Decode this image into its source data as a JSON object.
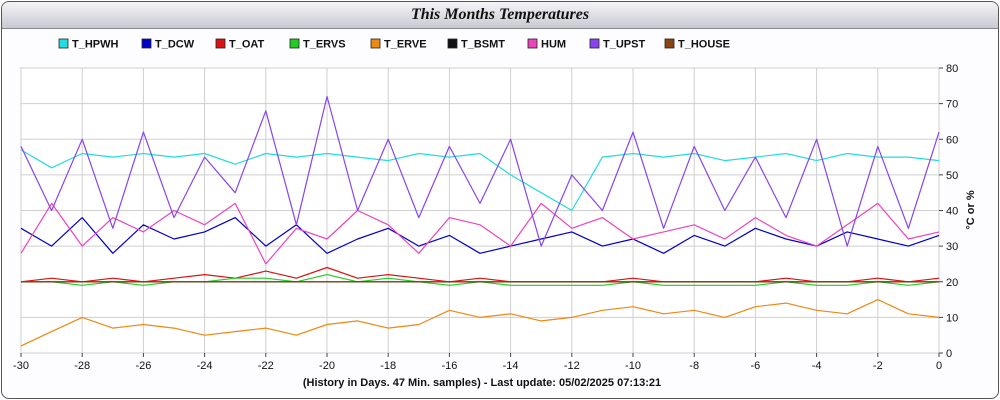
{
  "window": {
    "title": "This Months Temperatures"
  },
  "chart_data": {
    "type": "line",
    "title": "This Months Temperatures",
    "xlabel": "(History in Days. 47 Min. samples) - Last update: 05/02/2025 07:13:21",
    "ylabel": "°C or %",
    "xlim": [
      -30,
      0
    ],
    "ylim": [
      0,
      80
    ],
    "x_ticks": [
      -30,
      -28,
      -26,
      -24,
      -22,
      -20,
      -18,
      -16,
      -14,
      -12,
      -10,
      -8,
      -6,
      -4,
      -2,
      0
    ],
    "y_ticks": [
      0,
      10,
      20,
      30,
      40,
      50,
      60,
      70,
      80
    ],
    "grid": true,
    "legend_position": "top",
    "x": [
      -30,
      -29,
      -28,
      -27,
      -26,
      -25,
      -24,
      -23,
      -22,
      -21,
      -20,
      -19,
      -18,
      -17,
      -16,
      -15,
      -14,
      -13,
      -12,
      -11,
      -10,
      -9,
      -8,
      -7,
      -6,
      -5,
      -4,
      -3,
      -2,
      -1,
      0
    ],
    "series": [
      {
        "name": "T_HPWH",
        "color": "#22dddd",
        "values": [
          57,
          52,
          56,
          55,
          56,
          55,
          56,
          53,
          56,
          55,
          56,
          55,
          54,
          56,
          55,
          56,
          50,
          45,
          40,
          55,
          56,
          55,
          56,
          54,
          55,
          56,
          54,
          56,
          55,
          55,
          54
        ]
      },
      {
        "name": "T_DCW",
        "color": "#0000cc",
        "values": [
          35,
          30,
          38,
          28,
          36,
          32,
          34,
          38,
          30,
          36,
          28,
          32,
          35,
          30,
          33,
          28,
          30,
          32,
          34,
          30,
          32,
          28,
          33,
          30,
          35,
          32,
          30,
          34,
          32,
          30,
          33
        ]
      },
      {
        "name": "T_OAT",
        "color": "#dd1111",
        "values": [
          20,
          21,
          20,
          21,
          20,
          21,
          22,
          21,
          23,
          21,
          24,
          21,
          22,
          21,
          20,
          21,
          20,
          20,
          20,
          20,
          21,
          20,
          20,
          20,
          20,
          21,
          20,
          20,
          21,
          20,
          21
        ]
      },
      {
        "name": "T_ERVS",
        "color": "#22cc22",
        "values": [
          20,
          20,
          19,
          20,
          19,
          20,
          20,
          21,
          21,
          20,
          22,
          20,
          21,
          20,
          19,
          20,
          19,
          19,
          19,
          19,
          20,
          19,
          19,
          19,
          19,
          20,
          19,
          19,
          20,
          19,
          20
        ]
      },
      {
        "name": "T_ERVE",
        "color": "#ee8811",
        "values": [
          2,
          6,
          10,
          7,
          8,
          7,
          5,
          6,
          7,
          5,
          8,
          9,
          7,
          8,
          12,
          10,
          11,
          9,
          10,
          12,
          13,
          11,
          12,
          10,
          13,
          14,
          12,
          11,
          15,
          11,
          10
        ]
      },
      {
        "name": "T_BSMT",
        "color": "#111111",
        "values": [
          20,
          20,
          20,
          20,
          20,
          20,
          20,
          20,
          20,
          20,
          20,
          20,
          20,
          20,
          20,
          20,
          20,
          20,
          20,
          20,
          20,
          20,
          20,
          20,
          20,
          20,
          20,
          20,
          20,
          20,
          20
        ]
      },
      {
        "name": "HUM",
        "color": "#ee44bb",
        "values": [
          28,
          42,
          30,
          38,
          34,
          40,
          36,
          42,
          25,
          35,
          32,
          40,
          36,
          28,
          38,
          36,
          30,
          42,
          35,
          38,
          32,
          34,
          36,
          32,
          38,
          33,
          30,
          36,
          42,
          32,
          34
        ]
      },
      {
        "name": "T_UPST",
        "color": "#8844ee",
        "values": [
          58,
          40,
          60,
          35,
          62,
          38,
          55,
          45,
          68,
          36,
          72,
          40,
          60,
          38,
          58,
          42,
          60,
          30,
          50,
          40,
          62,
          35,
          58,
          40,
          55,
          38,
          60,
          30,
          58,
          35,
          62
        ]
      },
      {
        "name": "T_HOUSE",
        "color": "#884411",
        "values": [
          20,
          20,
          20,
          20,
          20,
          20,
          20,
          20,
          20,
          20,
          20,
          20,
          20,
          20,
          20,
          20,
          20,
          20,
          20,
          20,
          20,
          20,
          20,
          20,
          20,
          20,
          20,
          20,
          20,
          20,
          20
        ]
      }
    ]
  }
}
